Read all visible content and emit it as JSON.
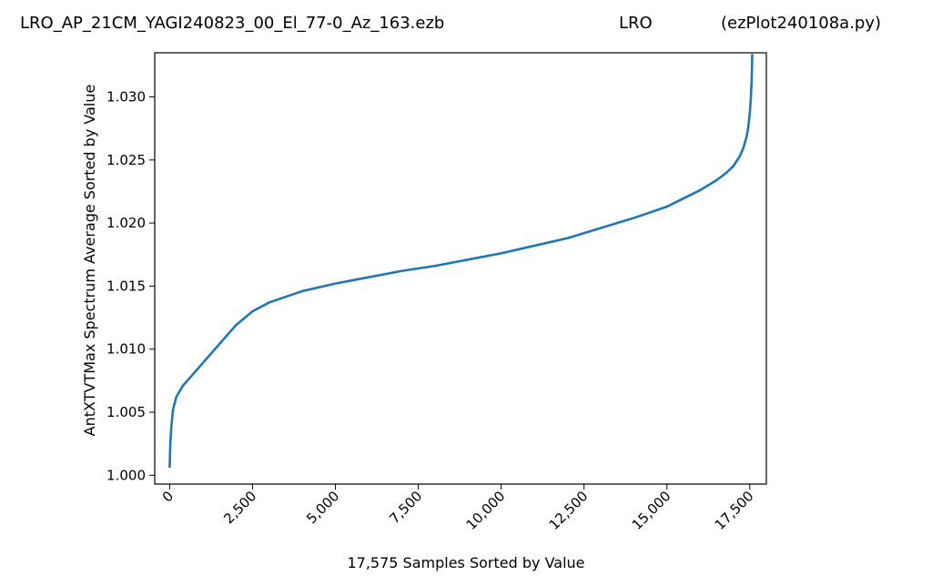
{
  "chart_data": {
    "type": "line",
    "title_parts": [
      "LRO_AP_21CM_YAGI240823_00_El_77-0_Az_163.ezb",
      "LRO",
      "(ezPlot240108a.py)"
    ],
    "xlabel": "17,575 Samples Sorted by Value",
    "ylabel": "AntXTVTMax Spectrum Average Sorted by Value",
    "xlim": [
      -450,
      18000
    ],
    "ylim": [
      0.9993,
      1.0335
    ],
    "x_ticks": [
      0,
      2500,
      5000,
      7500,
      10000,
      12500,
      15000,
      17500
    ],
    "x_tick_labels": [
      "0",
      "2,500",
      "5,000",
      "7,500",
      "10,000",
      "12,500",
      "15,000",
      "17,500"
    ],
    "y_ticks": [
      1.0,
      1.005,
      1.01,
      1.015,
      1.02,
      1.025,
      1.03
    ],
    "y_tick_labels": [
      "1.000",
      "1.005",
      "1.010",
      "1.015",
      "1.020",
      "1.025",
      "1.030"
    ],
    "grid": false,
    "series": [
      {
        "color": "#1f77b4",
        "x": [
          0,
          20,
          50,
          100,
          200,
          400,
          600,
          1000,
          1500,
          2000,
          2500,
          3000,
          4000,
          5000,
          6000,
          7000,
          8000,
          9000,
          10000,
          11000,
          12000,
          13000,
          14000,
          15000,
          16000,
          16500,
          16800,
          17000,
          17200,
          17300,
          17400,
          17450,
          17500,
          17530,
          17560,
          17574
        ],
        "y": [
          1.0006,
          1.0025,
          1.0038,
          1.0052,
          1.0062,
          1.0071,
          1.0077,
          1.0089,
          1.0104,
          1.0119,
          1.013,
          1.0137,
          1.0146,
          1.0152,
          1.0157,
          1.0162,
          1.0166,
          1.0171,
          1.0176,
          1.0182,
          1.0188,
          1.0196,
          1.0204,
          1.0213,
          1.0226,
          1.0234,
          1.024,
          1.0245,
          1.0253,
          1.0259,
          1.0268,
          1.0275,
          1.0287,
          1.0298,
          1.0315,
          1.0334
        ]
      }
    ]
  }
}
